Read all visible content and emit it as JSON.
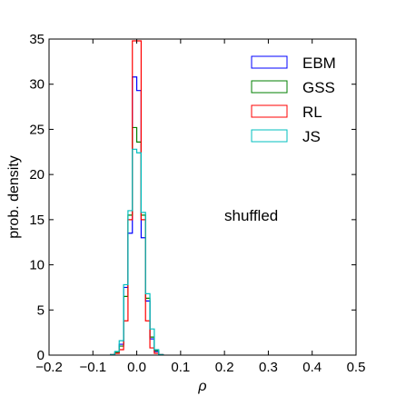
{
  "chart_data": {
    "type": "histogram-step",
    "xlabel": "ρ",
    "ylabel": "prob. density",
    "annotation": "shuffled",
    "xlim": [
      -0.2,
      0.5
    ],
    "ylim": [
      0,
      35
    ],
    "xticks": [
      -0.2,
      -0.1,
      0.0,
      0.1,
      0.2,
      0.3,
      0.4,
      0.5
    ],
    "xtick_labels": [
      "−0.2",
      "−0.1",
      "0.0",
      "0.1",
      "0.2",
      "0.3",
      "0.4",
      "0.5"
    ],
    "yticks": [
      0,
      5,
      10,
      15,
      20,
      25,
      30,
      35
    ],
    "ytick_labels": [
      "0",
      "5",
      "10",
      "15",
      "20",
      "25",
      "30",
      "35"
    ],
    "grid": false,
    "legend_position": "top-right",
    "bin_edges": [
      -0.06,
      -0.05,
      -0.04,
      -0.03,
      -0.02,
      -0.01,
      0.0,
      0.01,
      0.02,
      0.03,
      0.04,
      0.05,
      0.06
    ],
    "series": [
      {
        "name": "EBM",
        "color": "#0000ff",
        "values": [
          0.05,
          0.3,
          1.2,
          7.5,
          13.5,
          30.8,
          29.3,
          13.0,
          6.0,
          1.8,
          0.4,
          0.05
        ]
      },
      {
        "name": "GSS",
        "color": "#007f00",
        "values": [
          0.05,
          0.3,
          1.0,
          6.5,
          15.5,
          25.2,
          23.6,
          15.5,
          6.3,
          2.0,
          0.5,
          0.05
        ]
      },
      {
        "name": "RL",
        "color": "#ff0000",
        "values": [
          0.05,
          0.2,
          0.6,
          3.8,
          15.0,
          34.8,
          34.8,
          15.0,
          3.8,
          0.8,
          0.2,
          0.05
        ]
      },
      {
        "name": "JS",
        "color": "#00bfbf",
        "values": [
          0.05,
          0.4,
          1.6,
          7.8,
          16.0,
          22.8,
          22.4,
          15.8,
          6.8,
          2.9,
          0.6,
          0.05
        ]
      }
    ]
  }
}
